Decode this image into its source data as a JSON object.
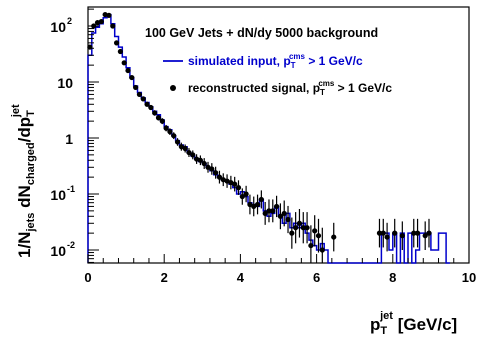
{
  "chart_data": {
    "type": "line",
    "title": "100 GeV Jets + dN/dy 5000 background",
    "xlabel": {
      "main": "p",
      "sub": "T",
      "sup": "jet",
      "unit": " [GeV/c]"
    },
    "ylabel": {
      "pre": "1/N",
      "pre_sub": "jets",
      "mid": " dN",
      "mid_sub": "charged",
      "post": "/dp",
      "post_sub": "T",
      "post_sup": "jet"
    },
    "xlim": [
      0,
      10
    ],
    "ylim": [
      0.005,
      220
    ],
    "y_scale": "log",
    "x_ticks": [
      "0",
      "2",
      "4",
      "6",
      "8",
      "10"
    ],
    "y_ticks": [
      {
        "base": "10",
        "exp": "-2",
        "value": 0.01
      },
      {
        "base": "10",
        "exp": "-1",
        "value": 0.1
      },
      {
        "base": "1",
        "exp": "",
        "value": 1
      },
      {
        "base": "10",
        "exp": "",
        "value": 10
      },
      {
        "base": "10",
        "exp": "2",
        "value": 100
      }
    ],
    "legend": {
      "placement": "top-right",
      "entries": [
        {
          "text": "simulated input, p",
          "sub": "T",
          "sup": "cms",
          "tail": " > 1 GeV/c",
          "style": "line",
          "color": "#0000cc"
        },
        {
          "text": "reconstructed signal, p",
          "sub": "T",
          "sup": "cms",
          "tail": " > 1 GeV/c",
          "style": "marker",
          "color": "#000000"
        }
      ]
    },
    "series": [
      {
        "name": "simulated input",
        "style": "histogram",
        "color": "#0000cc",
        "bin_width": 0.1,
        "x": [
          0.0,
          0.1,
          0.2,
          0.3,
          0.4,
          0.5,
          0.6,
          0.7,
          0.8,
          0.9,
          1.0,
          1.1,
          1.2,
          1.3,
          1.4,
          1.5,
          1.6,
          1.7,
          1.8,
          1.9,
          2.0,
          2.1,
          2.2,
          2.3,
          2.4,
          2.5,
          2.6,
          2.7,
          2.8,
          2.9,
          3.0,
          3.1,
          3.2,
          3.3,
          3.4,
          3.5,
          3.6,
          3.7,
          3.8,
          3.9,
          4.0,
          4.1,
          4.2,
          4.3,
          4.4,
          4.5,
          4.6,
          4.7,
          4.8,
          4.9,
          5.0,
          5.1,
          5.2,
          5.3,
          5.4,
          5.5,
          5.6,
          5.7,
          5.8,
          5.9,
          6.0,
          6.1,
          6.2,
          6.3,
          6.4,
          6.5,
          6.6,
          6.7,
          6.8,
          6.9,
          7.0,
          7.1,
          7.2,
          7.3,
          7.4,
          7.5,
          7.6,
          7.7,
          7.8,
          7.9,
          8.0,
          8.1,
          8.2,
          8.3,
          8.4,
          8.5,
          8.6,
          8.7,
          8.8,
          8.9,
          9.0,
          9.1,
          9.2,
          9.3,
          9.4
        ],
        "values": [
          30,
          75,
          95,
          110,
          140,
          160,
          110,
          65,
          42,
          28,
          18,
          12,
          8.5,
          6.5,
          5.2,
          4.3,
          3.6,
          3.0,
          2.6,
          2.1,
          1.6,
          1.4,
          1.1,
          0.9,
          0.75,
          0.7,
          0.55,
          0.48,
          0.42,
          0.38,
          0.35,
          0.3,
          0.26,
          0.22,
          0.2,
          0.18,
          0.17,
          0.15,
          0.13,
          0.1,
          0.11,
          0.09,
          0.07,
          0.065,
          0.06,
          0.08,
          0.05,
          0.04,
          0.045,
          0.06,
          0.04,
          0.03,
          0.045,
          0.025,
          0.03,
          0.025,
          0.03,
          0.02,
          0.015,
          0.012,
          0.01,
          0.013,
          0.01,
          0.005,
          0.005,
          0.005,
          0.005,
          0.005,
          0.005,
          0.005,
          0.005,
          0.005,
          0.005,
          0.005,
          0.005,
          0.005,
          0.005,
          0.02,
          0.02,
          0.01,
          0.02,
          0.005,
          0.02,
          0.005,
          0.02,
          0.005,
          0.01,
          0.02,
          0.02,
          0.02,
          0.01,
          0.01,
          0.02,
          0.02,
          0.005
        ]
      },
      {
        "name": "reconstructed signal",
        "style": "markers",
        "color": "#000000",
        "x": [
          0.05,
          0.15,
          0.25,
          0.35,
          0.45,
          0.55,
          0.65,
          0.75,
          0.85,
          0.95,
          1.05,
          1.15,
          1.25,
          1.35,
          1.45,
          1.55,
          1.65,
          1.75,
          1.85,
          1.95,
          2.05,
          2.15,
          2.25,
          2.35,
          2.45,
          2.55,
          2.65,
          2.75,
          2.85,
          2.95,
          3.05,
          3.15,
          3.25,
          3.35,
          3.45,
          3.55,
          3.65,
          3.75,
          3.85,
          3.95,
          4.05,
          4.15,
          4.25,
          4.35,
          4.45,
          4.55,
          4.65,
          4.75,
          4.85,
          4.95,
          5.05,
          5.15,
          5.25,
          5.35,
          5.45,
          5.55,
          5.65,
          5.75,
          5.85,
          5.95,
          6.05,
          6.15,
          6.45,
          7.65,
          7.75,
          7.85,
          8.05,
          8.25,
          8.55,
          8.65,
          8.85,
          8.95
        ],
        "values": [
          42,
          100,
          115,
          120,
          160,
          155,
          100,
          50,
          35,
          22,
          16,
          12,
          8,
          6,
          5,
          4,
          3.5,
          2.8,
          2.3,
          2.0,
          1.5,
          1.3,
          1.1,
          0.85,
          0.7,
          0.65,
          0.55,
          0.5,
          0.42,
          0.4,
          0.35,
          0.3,
          0.28,
          0.24,
          0.2,
          0.18,
          0.17,
          0.16,
          0.15,
          0.13,
          0.09,
          0.1,
          0.065,
          0.06,
          0.065,
          0.08,
          0.045,
          0.05,
          0.05,
          0.06,
          0.04,
          0.045,
          0.035,
          0.02,
          0.025,
          0.03,
          0.025,
          0.025,
          0.012,
          0.022,
          0.018,
          0.01,
          0.017,
          0.02,
          0.02,
          0.017,
          0.02,
          0.018,
          0.02,
          0.02,
          0.018,
          0.02
        ],
        "err_factor": [
          1.05,
          1.05,
          1.05,
          1.05,
          1.05,
          1.05,
          1.05,
          1.05,
          1.05,
          1.05,
          1.06,
          1.07,
          1.08,
          1.08,
          1.09,
          1.1,
          1.1,
          1.12,
          1.12,
          1.13,
          1.14,
          1.15,
          1.15,
          1.17,
          1.18,
          1.18,
          1.2,
          1.2,
          1.22,
          1.22,
          1.25,
          1.25,
          1.27,
          1.28,
          1.3,
          1.3,
          1.32,
          1.32,
          1.35,
          1.35,
          1.4,
          1.4,
          1.5,
          1.5,
          1.5,
          1.45,
          1.6,
          1.6,
          1.6,
          1.55,
          1.7,
          1.7,
          1.75,
          1.9,
          1.9,
          1.8,
          1.9,
          1.9,
          2.3,
          1.9,
          2.0,
          2.5,
          1.8,
          1.8,
          1.8,
          1.8,
          1.8,
          1.8,
          1.8,
          1.8,
          1.8,
          1.8
        ]
      }
    ]
  }
}
